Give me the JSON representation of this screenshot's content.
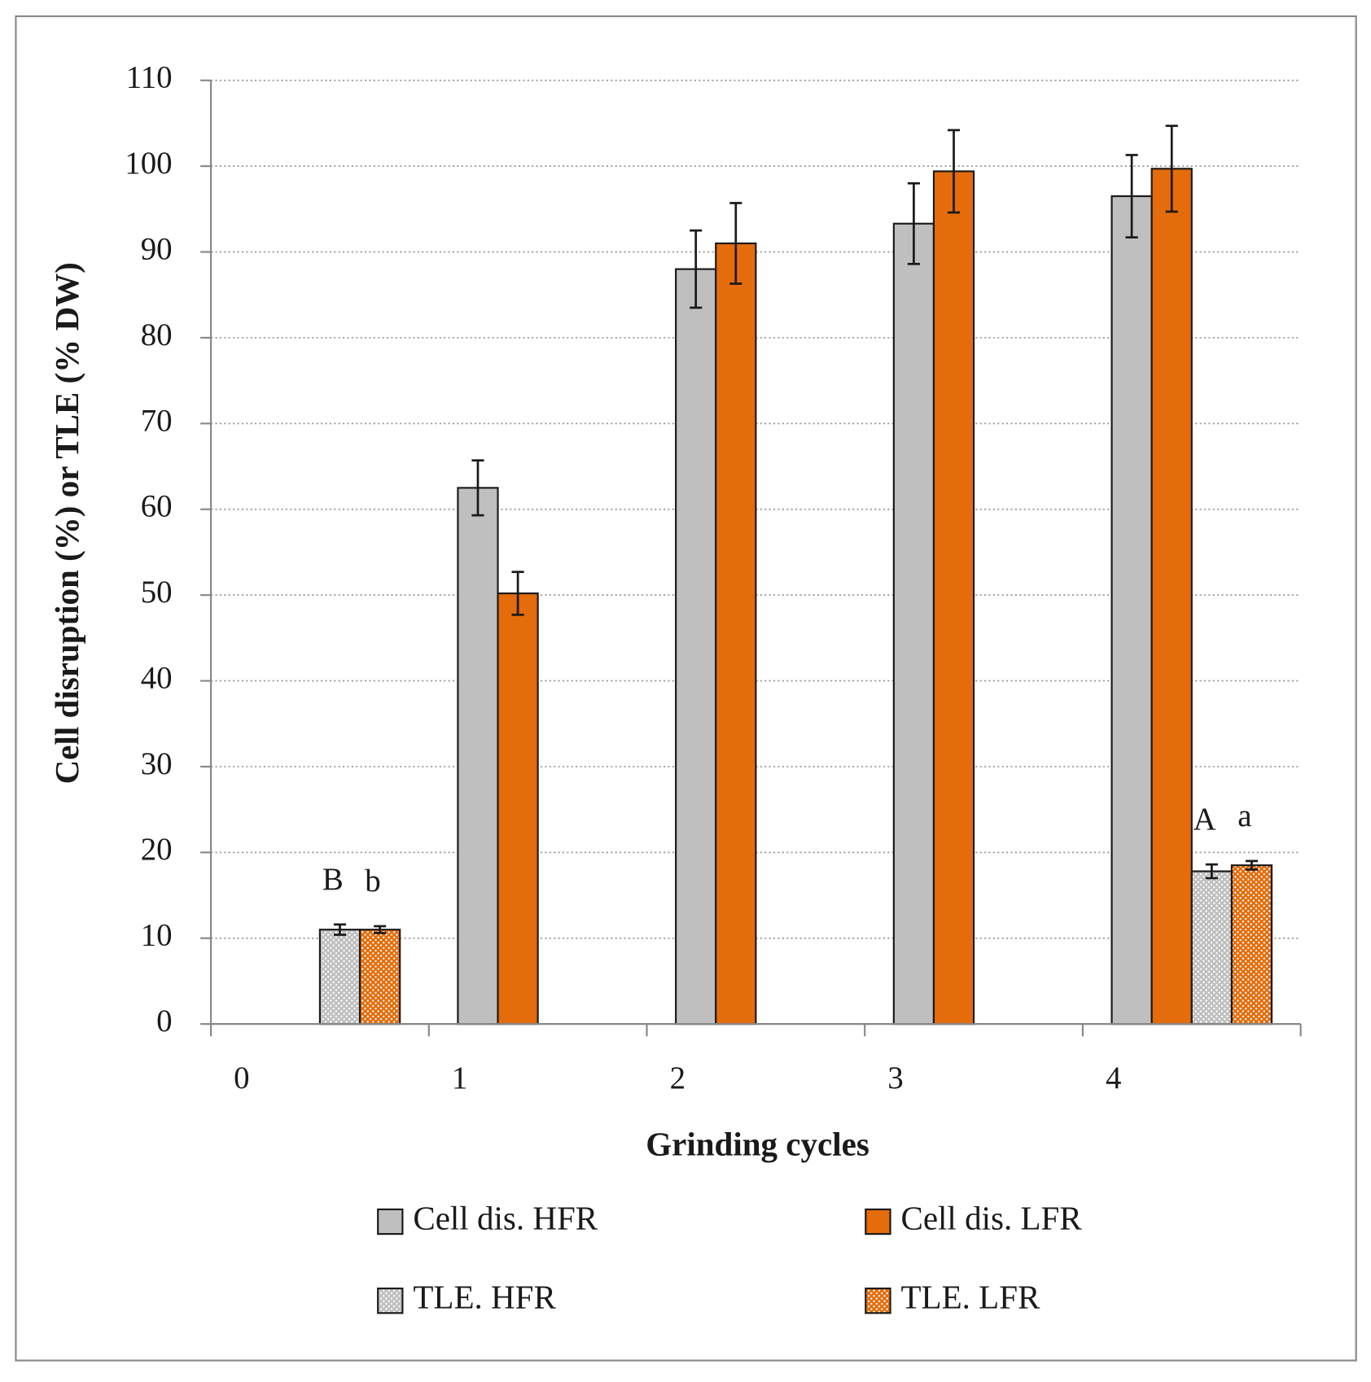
{
  "chart_data": {
    "type": "bar",
    "xlabel": "Grinding cycles",
    "ylabel": "Cell disruption (%) or TLE (% DW)",
    "categories": [
      "0",
      "1",
      "2",
      "3",
      "4"
    ],
    "ylim": [
      0,
      110
    ],
    "yticks": [
      0,
      10,
      20,
      30,
      40,
      50,
      60,
      70,
      80,
      90,
      100,
      110
    ],
    "grid": true,
    "series": [
      {
        "name": "Cell dis. HFR",
        "color": "#bfbfbf",
        "pattern": false,
        "values": [
          null,
          62.5,
          88,
          93.3,
          96.5
        ],
        "errors": [
          null,
          3.2,
          4.5,
          4.7,
          4.8
        ]
      },
      {
        "name": "Cell dis. LFR",
        "color": "#e46c0a",
        "pattern": false,
        "values": [
          null,
          50.2,
          91,
          99.4,
          99.7
        ],
        "errors": [
          null,
          2.5,
          4.7,
          4.8,
          5
        ]
      },
      {
        "name": "TLE. HFR",
        "color": "#bfbfbf",
        "pattern": true,
        "values": [
          11,
          null,
          null,
          null,
          17.8
        ],
        "errors": [
          0.6,
          null,
          null,
          null,
          0.8
        ]
      },
      {
        "name": "TLE. LFR",
        "color": "#e46c0a",
        "pattern": true,
        "values": [
          11,
          null,
          null,
          null,
          18.5
        ],
        "errors": [
          0.4,
          null,
          null,
          null,
          0.5
        ]
      }
    ],
    "annotations": [
      {
        "text": "B",
        "series": 2,
        "category": 0
      },
      {
        "text": "b",
        "series": 3,
        "category": 0
      },
      {
        "text": "A",
        "series": 2,
        "category": 4
      },
      {
        "text": "a",
        "series": 3,
        "category": 4
      }
    ]
  }
}
